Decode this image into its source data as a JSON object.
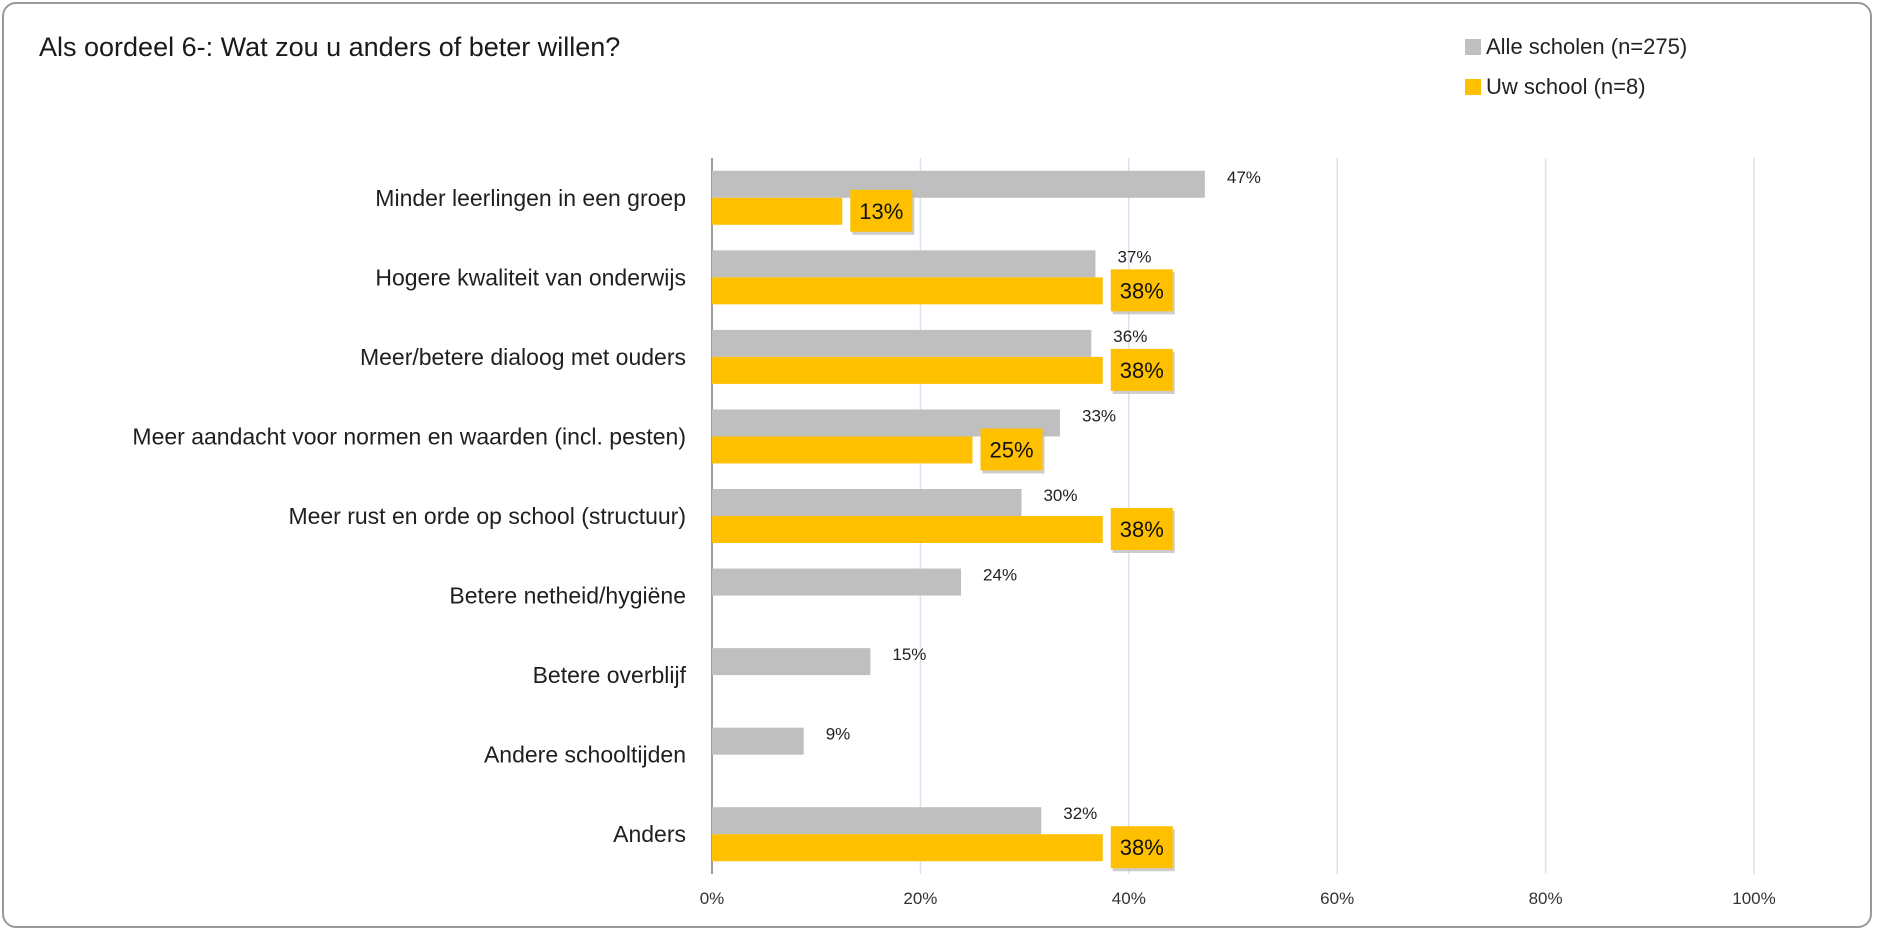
{
  "colors": {
    "alle": "#bfbfbf",
    "uw": "#ffc000",
    "grid": "#d6e3ef",
    "axis": "#7f7f7f"
  },
  "legend": {
    "alle_label": "Alle scholen (n=275)",
    "uw_label": "Uw school (n=8)"
  },
  "chart_data": {
    "type": "bar",
    "orientation": "horizontal",
    "title": "Als oordeel 6-: Wat zou u anders of beter willen?",
    "xlim": [
      0,
      100
    ],
    "xticks": [
      "0%",
      "20%",
      "40%",
      "60%",
      "80%",
      "100%"
    ],
    "grid": true,
    "legend_position": "top-right",
    "categories": [
      "Minder leerlingen in een groep",
      "Hogere kwaliteit van onderwijs",
      "Meer/betere dialoog met ouders",
      "Meer aandacht voor normen en waarden (incl. pesten)",
      "Meer rust en orde op school (structuur)",
      "Betere netheid/hygiëne",
      "Betere overblijf",
      "Andere schooltijden",
      "Anders"
    ],
    "series": [
      {
        "name": "Alle scholen (n=275)",
        "values": [
          47.3,
          36.8,
          36.4,
          33.4,
          29.7,
          23.9,
          15.2,
          8.8,
          31.6
        ],
        "labels": [
          "47%",
          "37%",
          "36%",
          "33%",
          "30%",
          "24%",
          "15%",
          "9%",
          "32%"
        ]
      },
      {
        "name": "Uw school (n=8)",
        "values": [
          12.5,
          37.5,
          37.5,
          25,
          37.5,
          null,
          null,
          null,
          37.5
        ],
        "labels": [
          "13%",
          "38%",
          "38%",
          "25%",
          "38%",
          null,
          null,
          null,
          "38%"
        ]
      }
    ]
  }
}
